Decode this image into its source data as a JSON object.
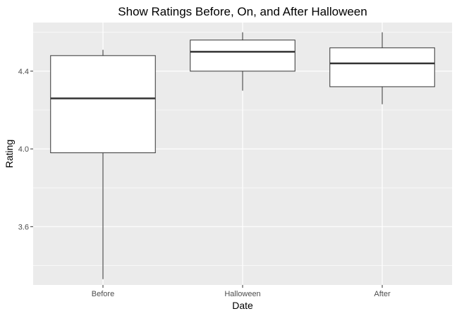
{
  "chart_data": {
    "type": "boxplot",
    "title": "Show Ratings Before, On, and After Halloween",
    "xlabel": "Date",
    "ylabel": "Rating",
    "categories": [
      "Before",
      "Halloween",
      "After"
    ],
    "boxes": [
      {
        "category": "Before",
        "min": 3.33,
        "q1": 3.98,
        "median": 4.26,
        "q3": 4.48,
        "max": 4.51
      },
      {
        "category": "Halloween",
        "min": 4.3,
        "q1": 4.4,
        "median": 4.5,
        "q3": 4.56,
        "max": 4.6
      },
      {
        "category": "After",
        "min": 4.23,
        "q1": 4.32,
        "median": 4.44,
        "q3": 4.52,
        "max": 4.6
      }
    ],
    "y_ticks": [
      3.6,
      4.0,
      4.4
    ],
    "y_tick_labels": [
      "3.6",
      "4.0",
      "4.4"
    ],
    "ylim": [
      3.3,
      4.65
    ],
    "grid": true,
    "colors": {
      "panel_background": "#ebebeb",
      "grid_major": "#ffffff",
      "box_fill": "#ffffff",
      "box_stroke": "#333333",
      "tick": "#333333"
    }
  }
}
